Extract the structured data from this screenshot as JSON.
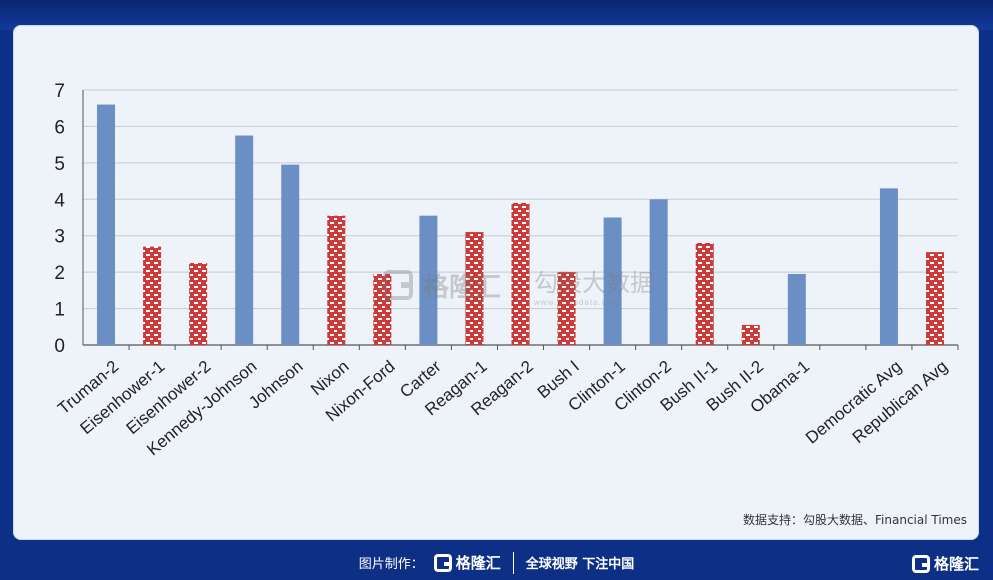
{
  "chart_data": {
    "type": "bar",
    "categories": [
      "Truman-2",
      "Eisenhower-1",
      "Eisenhower-2",
      "Kennedy-Johnson",
      "Johnson",
      "Nixon",
      "Nixon-Ford",
      "Carter",
      "Reagan-1",
      "Reagan-2",
      "Bush I",
      "Clinton-1",
      "Clinton-2",
      "Bush II-1",
      "Bush II-2",
      "Obama-1",
      "",
      "Democratic Avg",
      "Republican Avg"
    ],
    "values": [
      6.6,
      2.7,
      2.25,
      5.75,
      4.95,
      3.55,
      1.95,
      3.55,
      3.1,
      3.9,
      2.0,
      3.5,
      4.0,
      2.8,
      0.55,
      1.95,
      null,
      4.3,
      2.55
    ],
    "party": [
      "D",
      "R",
      "R",
      "D",
      "D",
      "R",
      "R",
      "D",
      "R",
      "R",
      "R",
      "D",
      "D",
      "R",
      "R",
      "D",
      "",
      "D",
      "R"
    ],
    "ylim": [
      0,
      7
    ],
    "yticks": [
      0,
      1,
      2,
      3,
      4,
      5,
      6,
      7
    ],
    "grid": true,
    "colors": {
      "D": "#6b8fc5",
      "R": "#cc3a3a",
      "R_pattern_light": "#ffffff"
    }
  },
  "watermark": {
    "brand": "格隆汇",
    "brand2": "勾股大数据",
    "url": "www.gogudata.com"
  },
  "source_text": "数据支持：勾股大数据、Financial Times",
  "footer": {
    "label": "图片制作：",
    "brand": "格隆汇",
    "slogan": "全球视野 下注中国"
  },
  "corner_brand": "格隆汇"
}
